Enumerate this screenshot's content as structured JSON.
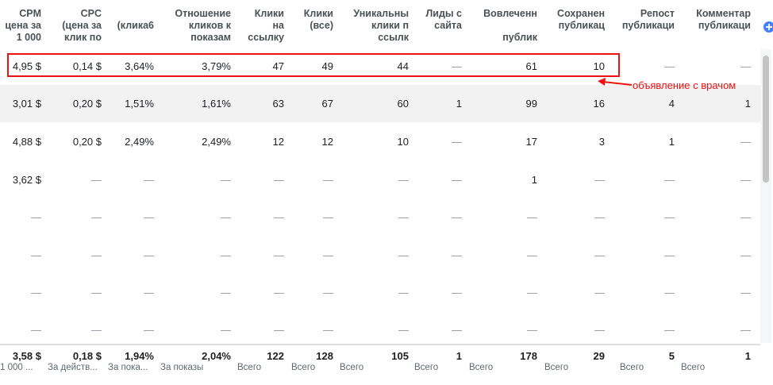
{
  "headers": [
    {
      "label": "CPM\nцена за\n1 000",
      "right": 52,
      "width": 60
    },
    {
      "label": "CPC\n(цена за\nклик по",
      "right": 128,
      "width": 72
    },
    {
      "label": "\n(клика6",
      "right": 194,
      "width": 60
    },
    {
      "label": "Отношение\nкликов к\nпоказам",
      "right": 291,
      "width": 90
    },
    {
      "label": "Клики\nна\nссылку",
      "right": 358,
      "width": 60
    },
    {
      "label": "Клики\n(все)",
      "right": 420,
      "width": 56
    },
    {
      "label": "Уникальны\nклики п\nссылк",
      "right": 515,
      "width": 90
    },
    {
      "label": "Лиды с\nсайта",
      "right": 582,
      "width": 60
    },
    {
      "label": "Вовлеченн\n\nпублик",
      "right": 677,
      "width": 86
    },
    {
      "label": "Сохранен\nпубликац",
      "right": 762,
      "width": 78
    },
    {
      "label": "Репост\nпубликаци",
      "right": 850,
      "width": 80
    },
    {
      "label": "Комментар\nпубликаци",
      "right": 946,
      "width": 90
    }
  ],
  "rows": [
    {
      "cells": [
        "4,95 $",
        "0,14 $",
        "3,64%",
        "3,79%",
        "47",
        "49",
        "44",
        "—",
        "61",
        "10",
        "—",
        "—"
      ]
    },
    {
      "cells": [
        "3,01 $",
        "0,20 $",
        "1,51%",
        "1,61%",
        "63",
        "67",
        "60",
        "1",
        "99",
        "16",
        "4",
        "1"
      ]
    },
    {
      "cells": [
        "4,88 $",
        "0,20 $",
        "2,49%",
        "2,49%",
        "12",
        "12",
        "10",
        "—",
        "17",
        "3",
        "1",
        "—"
      ]
    },
    {
      "cells": [
        "3,62 $",
        "—",
        "—",
        "—",
        "—",
        "—",
        "—",
        "—",
        "1",
        "—",
        "—",
        "—"
      ]
    },
    {
      "cells": [
        "—",
        "—",
        "—",
        "—",
        "—",
        "—",
        "—",
        "—",
        "—",
        "—",
        "—",
        "—"
      ]
    },
    {
      "cells": [
        "—",
        "—",
        "—",
        "—",
        "—",
        "—",
        "—",
        "—",
        "—",
        "—",
        "—",
        "—"
      ]
    },
    {
      "cells": [
        "—",
        "—",
        "—",
        "—",
        "—",
        "—",
        "—",
        "—",
        "—",
        "—",
        "—",
        "—"
      ]
    },
    {
      "cells": [
        "—",
        "—",
        "—",
        "—",
        "—",
        "—",
        "—",
        "—",
        "—",
        "—",
        "—",
        "—"
      ]
    }
  ],
  "footer": [
    {
      "value": "3,58 $",
      "sub": "1 000 ..."
    },
    {
      "value": "0,18 $",
      "sub": "За действ..."
    },
    {
      "value": "1,94%",
      "sub": "За пока..."
    },
    {
      "value": "2,04%",
      "sub": "За показы"
    },
    {
      "value": "122",
      "sub": "Всего"
    },
    {
      "value": "128",
      "sub": "Всего"
    },
    {
      "value": "105",
      "sub": "Всего"
    },
    {
      "value": "1",
      "sub": "Всего"
    },
    {
      "value": "178",
      "sub": "Всего"
    },
    {
      "value": "29",
      "sub": "Всего"
    },
    {
      "value": "5",
      "sub": "Всего"
    },
    {
      "value": "1",
      "sub": "Всего"
    }
  ],
  "annotation": {
    "text": "объявление с врачом",
    "color": "#ee1111"
  },
  "icons": {
    "add_column": "plus-circle-icon",
    "arrow": "arrow-left-icon"
  },
  "colors": {
    "accent": "#4080ff",
    "shade_row": "#f2f2f2"
  }
}
